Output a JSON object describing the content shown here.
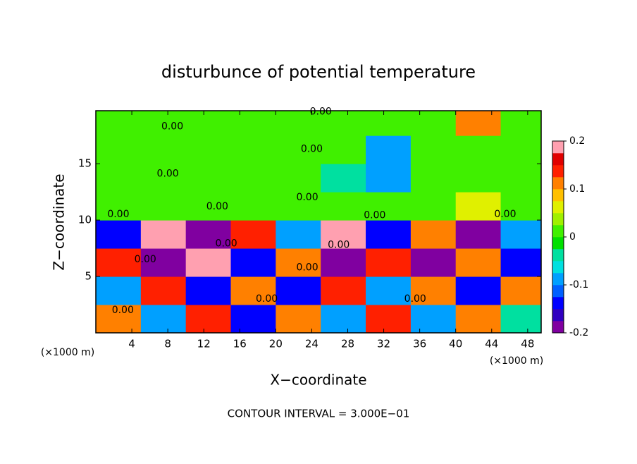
{
  "chart_data": {
    "type": "heatmap",
    "title": "disturbunce of potential temperature",
    "x_label": "X−coordinate",
    "y_label": "Z−coordinate",
    "x_unit_left": "(×1000 m)",
    "x_unit_right": "(×1000 m)",
    "footer": "CONTOUR INTERVAL = 3.000E−01",
    "xlim": [
      0,
      49.5
    ],
    "ylim": [
      0,
      19.7
    ],
    "xticks": [
      4,
      8,
      12,
      16,
      20,
      24,
      28,
      32,
      36,
      40,
      44,
      48
    ],
    "yticks": [
      5,
      10,
      15
    ],
    "x_edges": [
      0,
      5,
      10,
      15,
      20,
      25,
      30,
      35,
      40,
      45,
      49.5
    ],
    "y_edges": [
      0,
      2.5,
      5,
      7.5,
      10,
      12.5,
      15,
      17.5,
      19.7
    ],
    "values": [
      [
        0.1,
        -0.1,
        0.15,
        -0.15,
        0.1,
        -0.1,
        0.15,
        -0.1,
        0.1,
        -0.05
      ],
      [
        -0.1,
        0.15,
        -0.15,
        0.1,
        -0.15,
        0.15,
        -0.1,
        0.1,
        -0.15,
        0.1
      ],
      [
        0.15,
        -0.2,
        0.2,
        -0.15,
        0.1,
        -0.2,
        0.15,
        -0.2,
        0.1,
        -0.15
      ],
      [
        -0.15,
        0.2,
        -0.2,
        0.15,
        -0.1,
        0.2,
        -0.15,
        0.1,
        -0.2,
        -0.1
      ],
      [
        0,
        0,
        0,
        0,
        0,
        0,
        0,
        0,
        0.05,
        0
      ],
      [
        0,
        0,
        0,
        0,
        0,
        -0.05,
        -0.1,
        0,
        0,
        0
      ],
      [
        0,
        0,
        0,
        0,
        0,
        0,
        -0.1,
        0,
        0,
        0
      ],
      [
        0,
        0,
        0,
        0,
        0,
        0,
        0,
        0,
        0.1,
        0
      ]
    ],
    "colorbar": {
      "lim": [
        -0.2,
        0.2
      ],
      "ticks": [
        -0.2,
        -0.1,
        0,
        0.1,
        0.2
      ],
      "colors": [
        "#8000a0",
        "#3000c0",
        "#0000ff",
        "#0060ff",
        "#00a0ff",
        "#00e0e0",
        "#00e0a0",
        "#00e000",
        "#40f000",
        "#a0f000",
        "#e0f000",
        "#ffc000",
        "#ff8000",
        "#ff2000",
        "#e00000",
        "#ffa0b0"
      ]
    },
    "annotations": [
      {
        "text": "0.00",
        "x": 25,
        "y": 19.6
      },
      {
        "text": "0.00",
        "x": 8.5,
        "y": 18.3
      },
      {
        "text": "0.00",
        "x": 24,
        "y": 16.3
      },
      {
        "text": "0.00",
        "x": 8,
        "y": 14.1
      },
      {
        "text": "0.00",
        "x": 13.5,
        "y": 11.2
      },
      {
        "text": "0.00",
        "x": 23.5,
        "y": 12
      },
      {
        "text": "0.00",
        "x": 2.5,
        "y": 10.5
      },
      {
        "text": "0.00",
        "x": 31,
        "y": 10.4
      },
      {
        "text": "0.00",
        "x": 45.5,
        "y": 10.5
      },
      {
        "text": "0.00",
        "x": 14.5,
        "y": 7.9
      },
      {
        "text": "0.00",
        "x": 5.5,
        "y": 6.5
      },
      {
        "text": "0.00",
        "x": 23.5,
        "y": 5.8
      },
      {
        "text": "0.00",
        "x": 27,
        "y": 7.8
      },
      {
        "text": "0.00",
        "x": 3,
        "y": 2
      },
      {
        "text": "0.00",
        "x": 19,
        "y": 3
      },
      {
        "text": "0.00",
        "x": 35.5,
        "y": 3
      }
    ]
  }
}
